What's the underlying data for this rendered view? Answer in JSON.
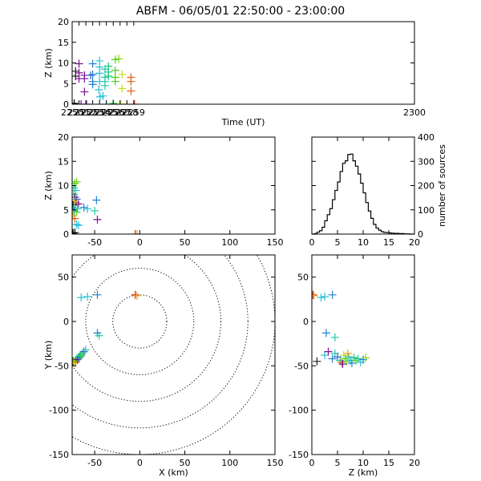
{
  "title": "ABFM - 06/05/01 22:50:00 - 23:00:00",
  "chart_data": [
    {
      "id": "time_height",
      "type": "scatter",
      "marker": "plus",
      "xlabel": "Time (UT)",
      "ylabel": "Z (km)",
      "xlim": [
        2250,
        2300
      ],
      "ylim": [
        0,
        20
      ],
      "xticks": [
        2250,
        2251,
        2252,
        2253,
        2254,
        2255,
        2256,
        2257,
        2258,
        2259,
        2300
      ],
      "xtick_labels": [
        "2250",
        "2251",
        "2252",
        "2253",
        "2254",
        "2255",
        "2256",
        "2257",
        "2258",
        "2259",
        "2300"
      ],
      "yticks": [
        0,
        5,
        10,
        15,
        20
      ],
      "points": [
        {
          "x": 2250.0,
          "y": 0.2,
          "c": "#000000"
        },
        {
          "x": 2250.3,
          "y": 0.2,
          "c": "#000000"
        },
        {
          "x": 2250.5,
          "y": 6.8,
          "c": "#202020"
        },
        {
          "x": 2250.5,
          "y": 8.0,
          "c": "#202020"
        },
        {
          "x": 2251.0,
          "y": 9.8,
          "c": "#7a1090"
        },
        {
          "x": 2251.0,
          "y": 7.6,
          "c": "#7a1090"
        },
        {
          "x": 2251.0,
          "y": 6.2,
          "c": "#7a1090"
        },
        {
          "x": 2251.3,
          "y": 0.0,
          "c": "#7a1090"
        },
        {
          "x": 2251.8,
          "y": 7.0,
          "c": "#7a1090"
        },
        {
          "x": 2251.8,
          "y": 6.2,
          "c": "#7a1090"
        },
        {
          "x": 2251.8,
          "y": 3.0,
          "c": "#7a1090"
        },
        {
          "x": 2252.1,
          "y": 0.0,
          "c": "#5a28a0"
        },
        {
          "x": 2252.7,
          "y": 7.0,
          "c": "#3060c8"
        },
        {
          "x": 2253.0,
          "y": 9.8,
          "c": "#2080d0"
        },
        {
          "x": 2253.0,
          "y": 7.2,
          "c": "#2080d0"
        },
        {
          "x": 2253.0,
          "y": 5.5,
          "c": "#2080d0"
        },
        {
          "x": 2253.0,
          "y": 4.8,
          "c": "#2080d0"
        },
        {
          "x": 2254.0,
          "y": 10.5,
          "c": "#28c0d8"
        },
        {
          "x": 2254.0,
          "y": 9.0,
          "c": "#28c0d8"
        },
        {
          "x": 2254.0,
          "y": 7.5,
          "c": "#28c0d8"
        },
        {
          "x": 2254.0,
          "y": 5.5,
          "c": "#28c0d8"
        },
        {
          "x": 2253.9,
          "y": 3.5,
          "c": "#28c0d8"
        },
        {
          "x": 2254.1,
          "y": 1.8,
          "c": "#28c0d8"
        },
        {
          "x": 2254.5,
          "y": 2.0,
          "c": "#28c0d8"
        },
        {
          "x": 2254.8,
          "y": 8.5,
          "c": "#20c8a8"
        },
        {
          "x": 2254.8,
          "y": 6.5,
          "c": "#20c8a8"
        },
        {
          "x": 2254.8,
          "y": 5.5,
          "c": "#20c8a8"
        },
        {
          "x": 2254.8,
          "y": 4.5,
          "c": "#20c8a8"
        },
        {
          "x": 2255.0,
          "y": 0.0,
          "c": "#20c8a8"
        },
        {
          "x": 2255.3,
          "y": 9.2,
          "c": "#18c878"
        },
        {
          "x": 2255.3,
          "y": 7.8,
          "c": "#18c878"
        },
        {
          "x": 2255.3,
          "y": 6.8,
          "c": "#18c878"
        },
        {
          "x": 2256.0,
          "y": 0.2,
          "c": "#20d040"
        },
        {
          "x": 2256.3,
          "y": 10.8,
          "c": "#48d020"
        },
        {
          "x": 2256.3,
          "y": 8.2,
          "c": "#48d020"
        },
        {
          "x": 2256.3,
          "y": 6.5,
          "c": "#48d020"
        },
        {
          "x": 2256.3,
          "y": 5.5,
          "c": "#48d020"
        },
        {
          "x": 2256.8,
          "y": 11.0,
          "c": "#80d818"
        },
        {
          "x": 2257.1,
          "y": 0.0,
          "c": "#c0dc18"
        },
        {
          "x": 2257.3,
          "y": 7.2,
          "c": "#c8dc20"
        },
        {
          "x": 2257.3,
          "y": 3.8,
          "c": "#c8dc20"
        },
        {
          "x": 2258.0,
          "y": 0.0,
          "c": "#f0a020"
        },
        {
          "x": 2258.6,
          "y": 6.5,
          "c": "#e86010"
        },
        {
          "x": 2258.6,
          "y": 5.5,
          "c": "#e86010"
        },
        {
          "x": 2258.6,
          "y": 3.2,
          "c": "#e86010"
        },
        {
          "x": 2259.1,
          "y": 0.0,
          "c": "#d02010"
        }
      ]
    },
    {
      "id": "x_z",
      "type": "scatter",
      "marker": "plus",
      "xlabel": "",
      "ylabel": "Z (km)",
      "xlim": [
        -75,
        150
      ],
      "ylim": [
        0,
        20
      ],
      "xticks": [
        -50,
        0,
        50,
        100,
        150
      ],
      "yticks": [
        0,
        5,
        10,
        15,
        20
      ],
      "points": [
        {
          "x": -72,
          "y": 10.5,
          "c": "#48d020"
        },
        {
          "x": -70,
          "y": 10.8,
          "c": "#80d818"
        },
        {
          "x": -73,
          "y": 9.5,
          "c": "#20c8a8"
        },
        {
          "x": -71,
          "y": 9.0,
          "c": "#28c0d8"
        },
        {
          "x": -73,
          "y": 8.2,
          "c": "#18c878"
        },
        {
          "x": -72,
          "y": 7.6,
          "c": "#7a1090"
        },
        {
          "x": -70,
          "y": 7.2,
          "c": "#3060c8"
        },
        {
          "x": -73,
          "y": 6.8,
          "c": "#c8dc20"
        },
        {
          "x": -71,
          "y": 6.5,
          "c": "#e86010"
        },
        {
          "x": -74,
          "y": 6.0,
          "c": "#202020"
        },
        {
          "x": -68,
          "y": 6.2,
          "c": "#7a1090"
        },
        {
          "x": -72,
          "y": 5.5,
          "c": "#20c8a8"
        },
        {
          "x": -69,
          "y": 5.2,
          "c": "#28c0d8"
        },
        {
          "x": -73,
          "y": 4.8,
          "c": "#2080d0"
        },
        {
          "x": -70,
          "y": 4.5,
          "c": "#48d020"
        },
        {
          "x": -74,
          "y": 3.8,
          "c": "#c8dc20"
        },
        {
          "x": -72,
          "y": 3.2,
          "c": "#e86010"
        },
        {
          "x": -70,
          "y": 2.0,
          "c": "#28c0d8"
        },
        {
          "x": -68,
          "y": 1.8,
          "c": "#28c0d8"
        },
        {
          "x": -72,
          "y": 0.3,
          "c": "#000000"
        },
        {
          "x": -74,
          "y": 0.2,
          "c": "#000000"
        },
        {
          "x": -62,
          "y": 5.5,
          "c": "#2080d0"
        },
        {
          "x": -58,
          "y": 5.2,
          "c": "#28c0d8"
        },
        {
          "x": -50,
          "y": 4.8,
          "c": "#20c8a8"
        },
        {
          "x": -48,
          "y": 7.0,
          "c": "#2080d0"
        },
        {
          "x": -47,
          "y": 3.0,
          "c": "#7a1090"
        },
        {
          "x": -5,
          "y": 0.0,
          "c": "#d02010"
        },
        {
          "x": -3,
          "y": 0.0,
          "c": "#f0a020"
        }
      ]
    },
    {
      "id": "altitude_histogram",
      "type": "bar",
      "xlabel": "",
      "ylabel": "number of sources",
      "xlim": [
        0,
        20
      ],
      "ylim": [
        0,
        400
      ],
      "xticks": [
        0,
        5,
        10,
        15,
        20
      ],
      "yticks": [
        0,
        100,
        200,
        300,
        400
      ],
      "bin_width": 0.5,
      "bin_start": 0,
      "values": [
        0,
        2,
        8,
        14,
        28,
        55,
        80,
        105,
        142,
        180,
        215,
        258,
        292,
        302,
        328,
        330,
        302,
        280,
        248,
        210,
        170,
        130,
        95,
        65,
        40,
        25,
        16,
        10,
        7,
        6,
        5,
        4,
        3,
        3,
        2,
        2,
        1,
        1,
        0,
        0
      ]
    },
    {
      "id": "plan_view",
      "type": "scatter",
      "marker": "plus",
      "xlabel": "X (km)",
      "ylabel": "Y (km)",
      "xlim": [
        -75,
        150
      ],
      "ylim": [
        -150,
        75
      ],
      "xticks": [
        -50,
        0,
        50,
        100,
        150
      ],
      "yticks": [
        -150,
        -100,
        -50,
        0,
        50
      ],
      "range_rings_km": [
        30,
        60,
        90,
        120,
        150
      ],
      "points": [
        {
          "x": -5,
          "y": 30,
          "c": "#d02010"
        },
        {
          "x": -3,
          "y": 29,
          "c": "#f0a020"
        },
        {
          "x": -65,
          "y": 27,
          "c": "#28c0d8"
        },
        {
          "x": -58,
          "y": 28,
          "c": "#28c0d8"
        },
        {
          "x": -47,
          "y": 30,
          "c": "#2080d0"
        },
        {
          "x": -47,
          "y": -13,
          "c": "#2080d0"
        },
        {
          "x": -45,
          "y": -16,
          "c": "#20c8a8"
        },
        {
          "x": -74,
          "y": -45,
          "c": "#202020"
        },
        {
          "x": -72,
          "y": -44,
          "c": "#80d818"
        },
        {
          "x": -70,
          "y": -42,
          "c": "#48d020"
        },
        {
          "x": -68,
          "y": -40,
          "c": "#28c0d8"
        },
        {
          "x": -66,
          "y": -38,
          "c": "#20c8a8"
        },
        {
          "x": -64,
          "y": -36,
          "c": "#18c878"
        },
        {
          "x": -62,
          "y": -34,
          "c": "#3060c8"
        },
        {
          "x": -60,
          "y": -32,
          "c": "#20c8a8"
        },
        {
          "x": -71,
          "y": -46,
          "c": "#e86010"
        },
        {
          "x": -73,
          "y": -47,
          "c": "#c8dc20"
        },
        {
          "x": -69,
          "y": -43,
          "c": "#7a1090"
        },
        {
          "x": -67,
          "y": -41,
          "c": "#2080d0"
        },
        {
          "x": -65,
          "y": -39,
          "c": "#48d020"
        }
      ]
    },
    {
      "id": "z_y",
      "type": "scatter",
      "marker": "plus",
      "xlabel": "Z (km)",
      "ylabel": "",
      "xlim": [
        0,
        20
      ],
      "ylim": [
        -150,
        75
      ],
      "xticks": [
        0,
        5,
        10,
        15,
        20
      ],
      "yticks": [
        -150,
        -100,
        -50,
        0,
        50
      ],
      "points": [
        {
          "x": 0.2,
          "y": 30,
          "c": "#d02010"
        },
        {
          "x": 0.4,
          "y": 29,
          "c": "#f0a020"
        },
        {
          "x": 1.8,
          "y": 27,
          "c": "#28c0d8"
        },
        {
          "x": 2.5,
          "y": 28,
          "c": "#28c0d8"
        },
        {
          "x": 4.0,
          "y": 30,
          "c": "#2080d0"
        },
        {
          "x": 2.8,
          "y": -13,
          "c": "#2080d0"
        },
        {
          "x": 4.5,
          "y": -18,
          "c": "#20c8a8"
        },
        {
          "x": 1.0,
          "y": -45,
          "c": "#202020"
        },
        {
          "x": 2.5,
          "y": -38,
          "c": "#28c0d8"
        },
        {
          "x": 3.2,
          "y": -34,
          "c": "#7a1090"
        },
        {
          "x": 4.0,
          "y": -42,
          "c": "#2080d0"
        },
        {
          "x": 4.5,
          "y": -36,
          "c": "#20c8a8"
        },
        {
          "x": 5.0,
          "y": -40,
          "c": "#3060c8"
        },
        {
          "x": 5.5,
          "y": -44,
          "c": "#18c878"
        },
        {
          "x": 5.8,
          "y": -46,
          "c": "#e86010"
        },
        {
          "x": 6.2,
          "y": -38,
          "c": "#c8dc20"
        },
        {
          "x": 6.5,
          "y": -42,
          "c": "#48d020"
        },
        {
          "x": 6.8,
          "y": -45,
          "c": "#80d818"
        },
        {
          "x": 7.2,
          "y": -40,
          "c": "#20c8a8"
        },
        {
          "x": 7.5,
          "y": -44,
          "c": "#28c0d8"
        },
        {
          "x": 7.8,
          "y": -47,
          "c": "#2080d0"
        },
        {
          "x": 8.2,
          "y": -41,
          "c": "#18c878"
        },
        {
          "x": 8.6,
          "y": -44,
          "c": "#48d020"
        },
        {
          "x": 9.0,
          "y": -42,
          "c": "#20c8a8"
        },
        {
          "x": 9.5,
          "y": -46,
          "c": "#28c0d8"
        },
        {
          "x": 10.0,
          "y": -43,
          "c": "#2080d0"
        },
        {
          "x": 10.5,
          "y": -41,
          "c": "#80d818"
        },
        {
          "x": 7.0,
          "y": -36,
          "c": "#f0a020"
        },
        {
          "x": 6.0,
          "y": -48,
          "c": "#7a1090"
        }
      ]
    }
  ]
}
